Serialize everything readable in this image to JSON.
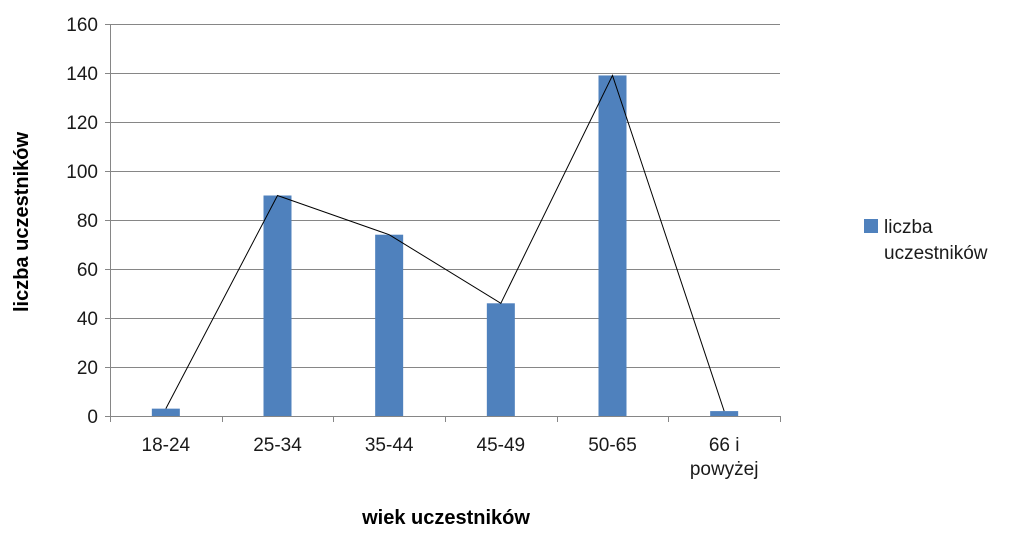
{
  "chart_data": {
    "type": "bar",
    "title": "",
    "xlabel": "wiek uczestników",
    "ylabel": "liczba uczestników",
    "categories": [
      "18-24",
      "25-34",
      "35-44",
      "45-49",
      "50-65",
      "66 i powyżej"
    ],
    "category_lines": [
      [
        "18-24"
      ],
      [
        "25-34"
      ],
      [
        "35-44"
      ],
      [
        "45-49"
      ],
      [
        "50-65"
      ],
      [
        "66 i",
        "powyżej"
      ]
    ],
    "series": [
      {
        "name": "liczba uczestników",
        "legend_lines": [
          "liczba",
          "uczestników"
        ],
        "values": [
          3,
          90,
          74,
          46,
          139,
          2
        ],
        "color": "#4f81bd"
      }
    ],
    "overlay_line": {
      "values": [
        3,
        90,
        74,
        46,
        139,
        2
      ],
      "color": "#000000"
    },
    "ylim": [
      0,
      160
    ],
    "yticks": [
      0,
      20,
      40,
      60,
      80,
      100,
      120,
      140,
      160
    ],
    "grid": true,
    "legend_position": "right"
  }
}
